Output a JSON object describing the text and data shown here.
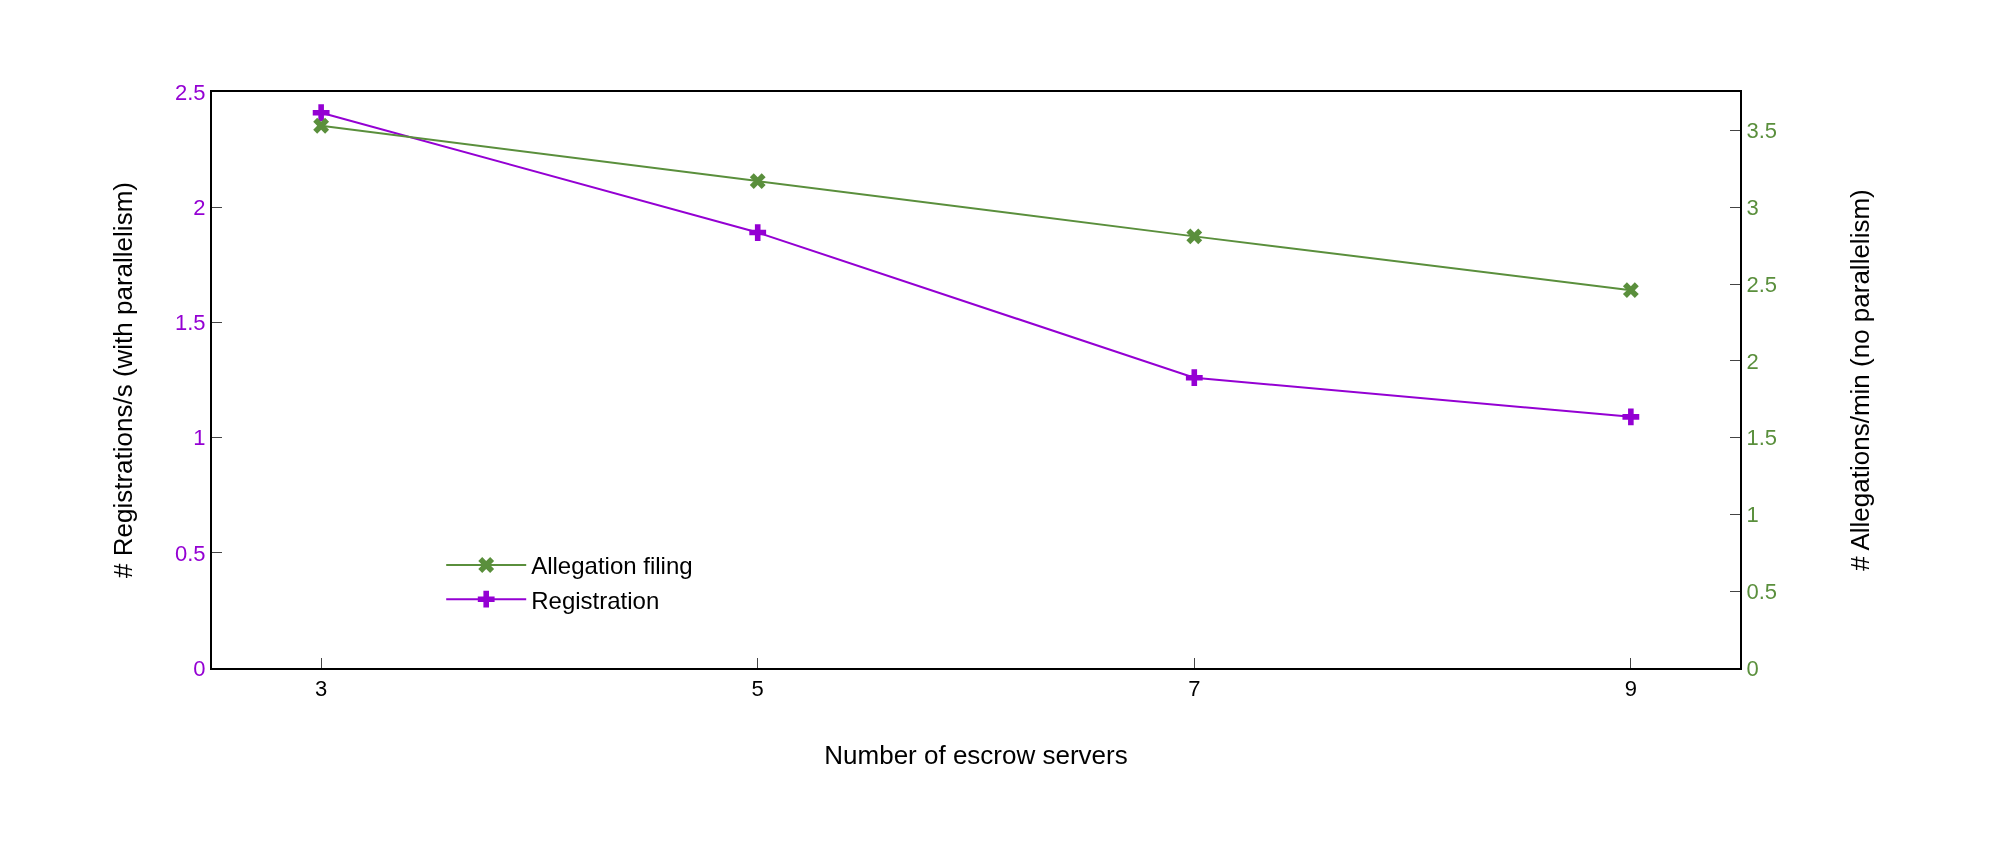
{
  "chart_data": {
    "type": "line",
    "xlabel": "Number of escrow servers",
    "ylabel": "# Registrations/s (with parallelism)",
    "y2label": "# Allegations/min (no parallelism)",
    "x": [
      3,
      5,
      7,
      9
    ],
    "xlim": [
      2.5,
      9.5
    ],
    "xticks": [
      3,
      5,
      7,
      9
    ],
    "ylim": [
      0,
      2.5
    ],
    "yticks": [
      0,
      0.5,
      1,
      1.5,
      2,
      2.5
    ],
    "y2lim": [
      0,
      3.75
    ],
    "y2ticks": [
      0,
      0.5,
      1,
      1.5,
      2,
      2.5,
      3,
      3.5
    ],
    "series": [
      {
        "name": "Allegation filing",
        "color": "#5a8f3c",
        "marker": "cross",
        "axis": "y2",
        "values": [
          3.53,
          3.17,
          2.81,
          2.46
        ]
      },
      {
        "name": "Registration",
        "color": "#9400d3",
        "marker": "cross",
        "values": [
          2.41,
          1.89,
          1.26,
          1.09
        ]
      }
    ],
    "legend": "bottom left",
    "line_style": "solid"
  }
}
